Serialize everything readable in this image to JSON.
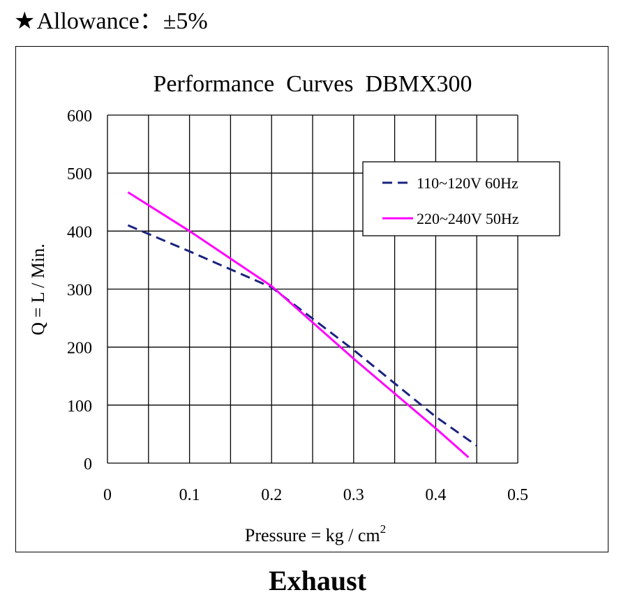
{
  "header": {
    "star_glyph": "★",
    "allowance_text": "Allowance：±5%"
  },
  "footer": {
    "caption": "Exhaust"
  },
  "chart_data": {
    "type": "line",
    "title": "Performance  Curves  DBMX300",
    "xlabel": "Pressure = kg / cm",
    "xlabel_superscript": "2",
    "ylabel": "Q = L / Min.",
    "xlim": [
      0,
      0.5
    ],
    "ylim": [
      0,
      600
    ],
    "x_ticks": [
      "0",
      "0.1",
      "0.2",
      "0.3",
      "0.4",
      "0.5"
    ],
    "y_ticks": [
      "0",
      "100",
      "200",
      "300",
      "400",
      "500",
      "600"
    ],
    "x_grid_step": 0.05,
    "y_grid_step": 100,
    "grid": true,
    "legend_position": "top-right",
    "series": [
      {
        "name": "110~120V 60Hz",
        "color": "#1a237e",
        "style": "dashed",
        "x": [
          0.025,
          0.1,
          0.2,
          0.3,
          0.4,
          0.45
        ],
        "y": [
          410,
          365,
          303,
          195,
          80,
          30
        ]
      },
      {
        "name": "220~240V 50Hz",
        "color": "#ff00ff",
        "style": "solid",
        "x": [
          0.025,
          0.1,
          0.2,
          0.3,
          0.4,
          0.44
        ],
        "y": [
          467,
          400,
          305,
          180,
          60,
          10
        ]
      }
    ]
  }
}
